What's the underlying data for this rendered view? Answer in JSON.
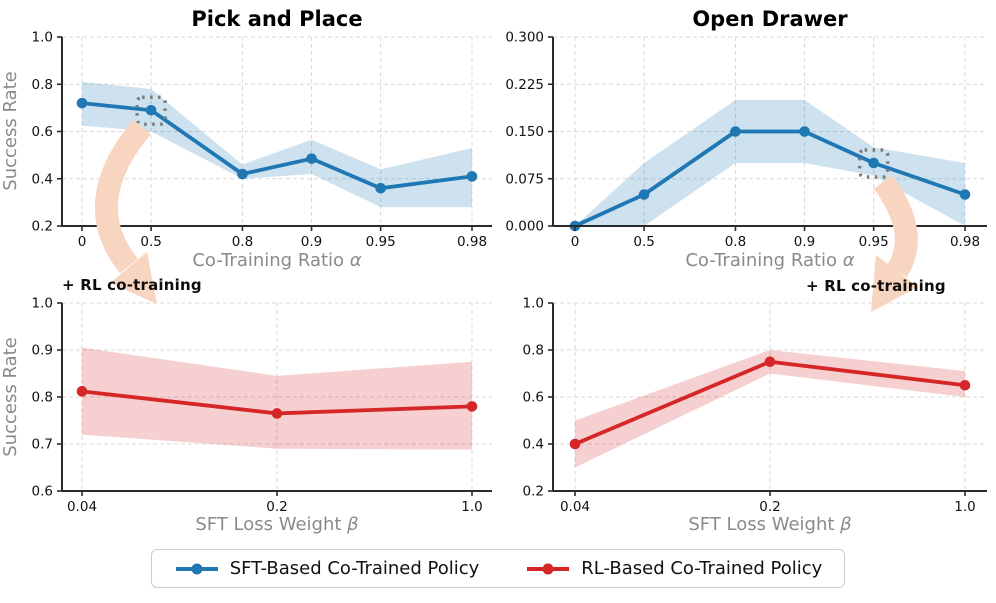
{
  "chart_data": [
    {
      "id": "pick-and-place-vs-alpha",
      "type": "line",
      "title": "Pick and Place",
      "xlabel_text": "Co-Training Ratio ",
      "xlabel_symbol": "α",
      "ylabel": "Success Rate",
      "x_scale": "log-1-minus-x",
      "x_values": [
        0,
        0.5,
        0.8,
        0.9,
        0.95,
        0.98
      ],
      "x_tick_labels": [
        "0",
        "0.5",
        "0.8",
        "0.9",
        "0.95",
        "0.98"
      ],
      "y_tick_labels": [
        "0.2",
        "0.4",
        "0.6",
        "0.8",
        "1.0"
      ],
      "ylim": [
        0.2,
        1.0
      ],
      "grid": true,
      "highlight_index": 1,
      "series": [
        {
          "name": "SFT-Based Co-Trained Policy",
          "color": "#1f77b4",
          "values": [
            0.72,
            0.69,
            0.42,
            0.485,
            0.36,
            0.41
          ],
          "band_low": [
            0.625,
            0.6,
            0.4,
            0.42,
            0.28,
            0.28
          ],
          "band_high": [
            0.81,
            0.78,
            0.46,
            0.565,
            0.44,
            0.53
          ]
        }
      ]
    },
    {
      "id": "open-drawer-vs-alpha",
      "type": "line",
      "title": "Open Drawer",
      "xlabel_text": "Co-Training Ratio ",
      "xlabel_symbol": "α",
      "ylabel": "",
      "x_scale": "log-1-minus-x",
      "x_values": [
        0,
        0.5,
        0.8,
        0.9,
        0.95,
        0.98
      ],
      "x_tick_labels": [
        "0",
        "0.5",
        "0.8",
        "0.9",
        "0.95",
        "0.98"
      ],
      "y_tick_labels": [
        "0.000",
        "0.075",
        "0.150",
        "0.225",
        "0.300"
      ],
      "ylim": [
        0.0,
        0.3
      ],
      "grid": true,
      "highlight_index": 4,
      "series": [
        {
          "name": "SFT-Based Co-Trained Policy",
          "color": "#1f77b4",
          "values": [
            0.0,
            0.05,
            0.15,
            0.15,
            0.1,
            0.05
          ],
          "band_low": [
            0.0,
            0.0,
            0.1,
            0.1,
            0.08,
            0.0
          ],
          "band_high": [
            0.0,
            0.1,
            0.2,
            0.2,
            0.125,
            0.1
          ]
        }
      ]
    },
    {
      "id": "pick-and-place-vs-beta",
      "type": "line",
      "title": "",
      "xlabel_text": "SFT Loss Weight ",
      "xlabel_symbol": "β",
      "ylabel": "Success Rate",
      "x_scale": "log-x",
      "x_values": [
        0.04,
        0.2,
        1.0
      ],
      "x_tick_labels": [
        "0.04",
        "0.2",
        "1.0"
      ],
      "y_tick_labels": [
        "0.6",
        "0.7",
        "0.8",
        "0.9",
        "1.0"
      ],
      "ylim": [
        0.6,
        1.0
      ],
      "grid": true,
      "highlight_index": null,
      "series": [
        {
          "name": "RL-Based Co-Trained Policy",
          "color": "#d62728",
          "values": [
            0.812,
            0.765,
            0.78
          ],
          "band_low": [
            0.72,
            0.69,
            0.688
          ],
          "band_high": [
            0.905,
            0.845,
            0.875
          ]
        }
      ]
    },
    {
      "id": "open-drawer-vs-beta",
      "type": "line",
      "title": "",
      "xlabel_text": "SFT Loss Weight ",
      "xlabel_symbol": "β",
      "ylabel": "",
      "x_scale": "log-x",
      "x_values": [
        0.04,
        0.2,
        1.0
      ],
      "x_tick_labels": [
        "0.04",
        "0.2",
        "1.0"
      ],
      "y_tick_labels": [
        "0.2",
        "0.4",
        "0.6",
        "0.8",
        "1.0"
      ],
      "ylim": [
        0.2,
        1.0
      ],
      "grid": true,
      "highlight_index": null,
      "series": [
        {
          "name": "RL-Based Co-Trained Policy",
          "color": "#d62728",
          "values": [
            0.4,
            0.75,
            0.65
          ],
          "band_low": [
            0.3,
            0.7,
            0.6
          ],
          "band_high": [
            0.5,
            0.8,
            0.71
          ]
        }
      ]
    }
  ],
  "annotations": [
    {
      "text": "+ RL co-training"
    },
    {
      "text": "+ RL co-training"
    }
  ],
  "legend": {
    "items": [
      {
        "label": "SFT-Based Co-Trained Policy",
        "color": "#1f77b4"
      },
      {
        "label": "RL-Based Co-Trained Policy",
        "color": "#d62728"
      }
    ]
  },
  "colors": {
    "sft_blue": "#1f77b4",
    "rl_red": "#d62728",
    "arrow_peach": "#f8d5c0",
    "band_opacity": "0.22",
    "grid_gray": "#d8d8d8",
    "highlight_gray": "#7a7a7a"
  }
}
